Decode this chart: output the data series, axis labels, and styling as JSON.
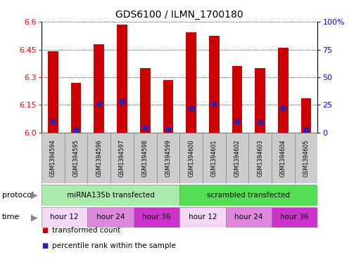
{
  "title": "GDS6100 / ILMN_1700180",
  "samples": [
    "GSM1394594",
    "GSM1394595",
    "GSM1394596",
    "GSM1394597",
    "GSM1394598",
    "GSM1394599",
    "GSM1394600",
    "GSM1394601",
    "GSM1394602",
    "GSM1394603",
    "GSM1394604",
    "GSM1394605"
  ],
  "transformed_counts": [
    6.44,
    6.27,
    6.48,
    6.585,
    6.35,
    6.285,
    6.545,
    6.525,
    6.36,
    6.35,
    6.46,
    6.185
  ],
  "percentile_ranks": [
    10,
    2,
    26,
    28,
    4,
    3,
    22,
    26,
    10,
    9,
    22,
    2
  ],
  "y_min": 6.0,
  "y_max": 6.6,
  "y_ticks": [
    6.0,
    6.15,
    6.3,
    6.45,
    6.6
  ],
  "y_right_ticks": [
    0,
    25,
    50,
    75,
    100
  ],
  "bar_color": "#cc0000",
  "dot_color": "#2222bb",
  "grid_color": "#000000",
  "title_fontsize": 10,
  "protocol_label": "protocol",
  "time_label": "time",
  "protocols": [
    {
      "label": "miRNA135b transfected",
      "start": 0,
      "end": 6,
      "color": "#aaeaaa"
    },
    {
      "label": "scrambled transfected",
      "start": 6,
      "end": 12,
      "color": "#55dd55"
    }
  ],
  "time_groups": [
    {
      "label": "hour 12",
      "start": 0,
      "end": 2,
      "color": "#f5d8f5"
    },
    {
      "label": "hour 24",
      "start": 2,
      "end": 4,
      "color": "#dd88dd"
    },
    {
      "label": "hour 36",
      "start": 4,
      "end": 6,
      "color": "#cc33cc"
    },
    {
      "label": "hour 12",
      "start": 6,
      "end": 8,
      "color": "#f5d8f5"
    },
    {
      "label": "hour 24",
      "start": 8,
      "end": 10,
      "color": "#dd88dd"
    },
    {
      "label": "hour 36",
      "start": 10,
      "end": 12,
      "color": "#cc33cc"
    }
  ],
  "sample_box_color": "#cccccc",
  "legend_items": [
    {
      "label": "transformed count",
      "color": "#cc0000"
    },
    {
      "label": "percentile rank within the sample",
      "color": "#2222bb"
    }
  ]
}
